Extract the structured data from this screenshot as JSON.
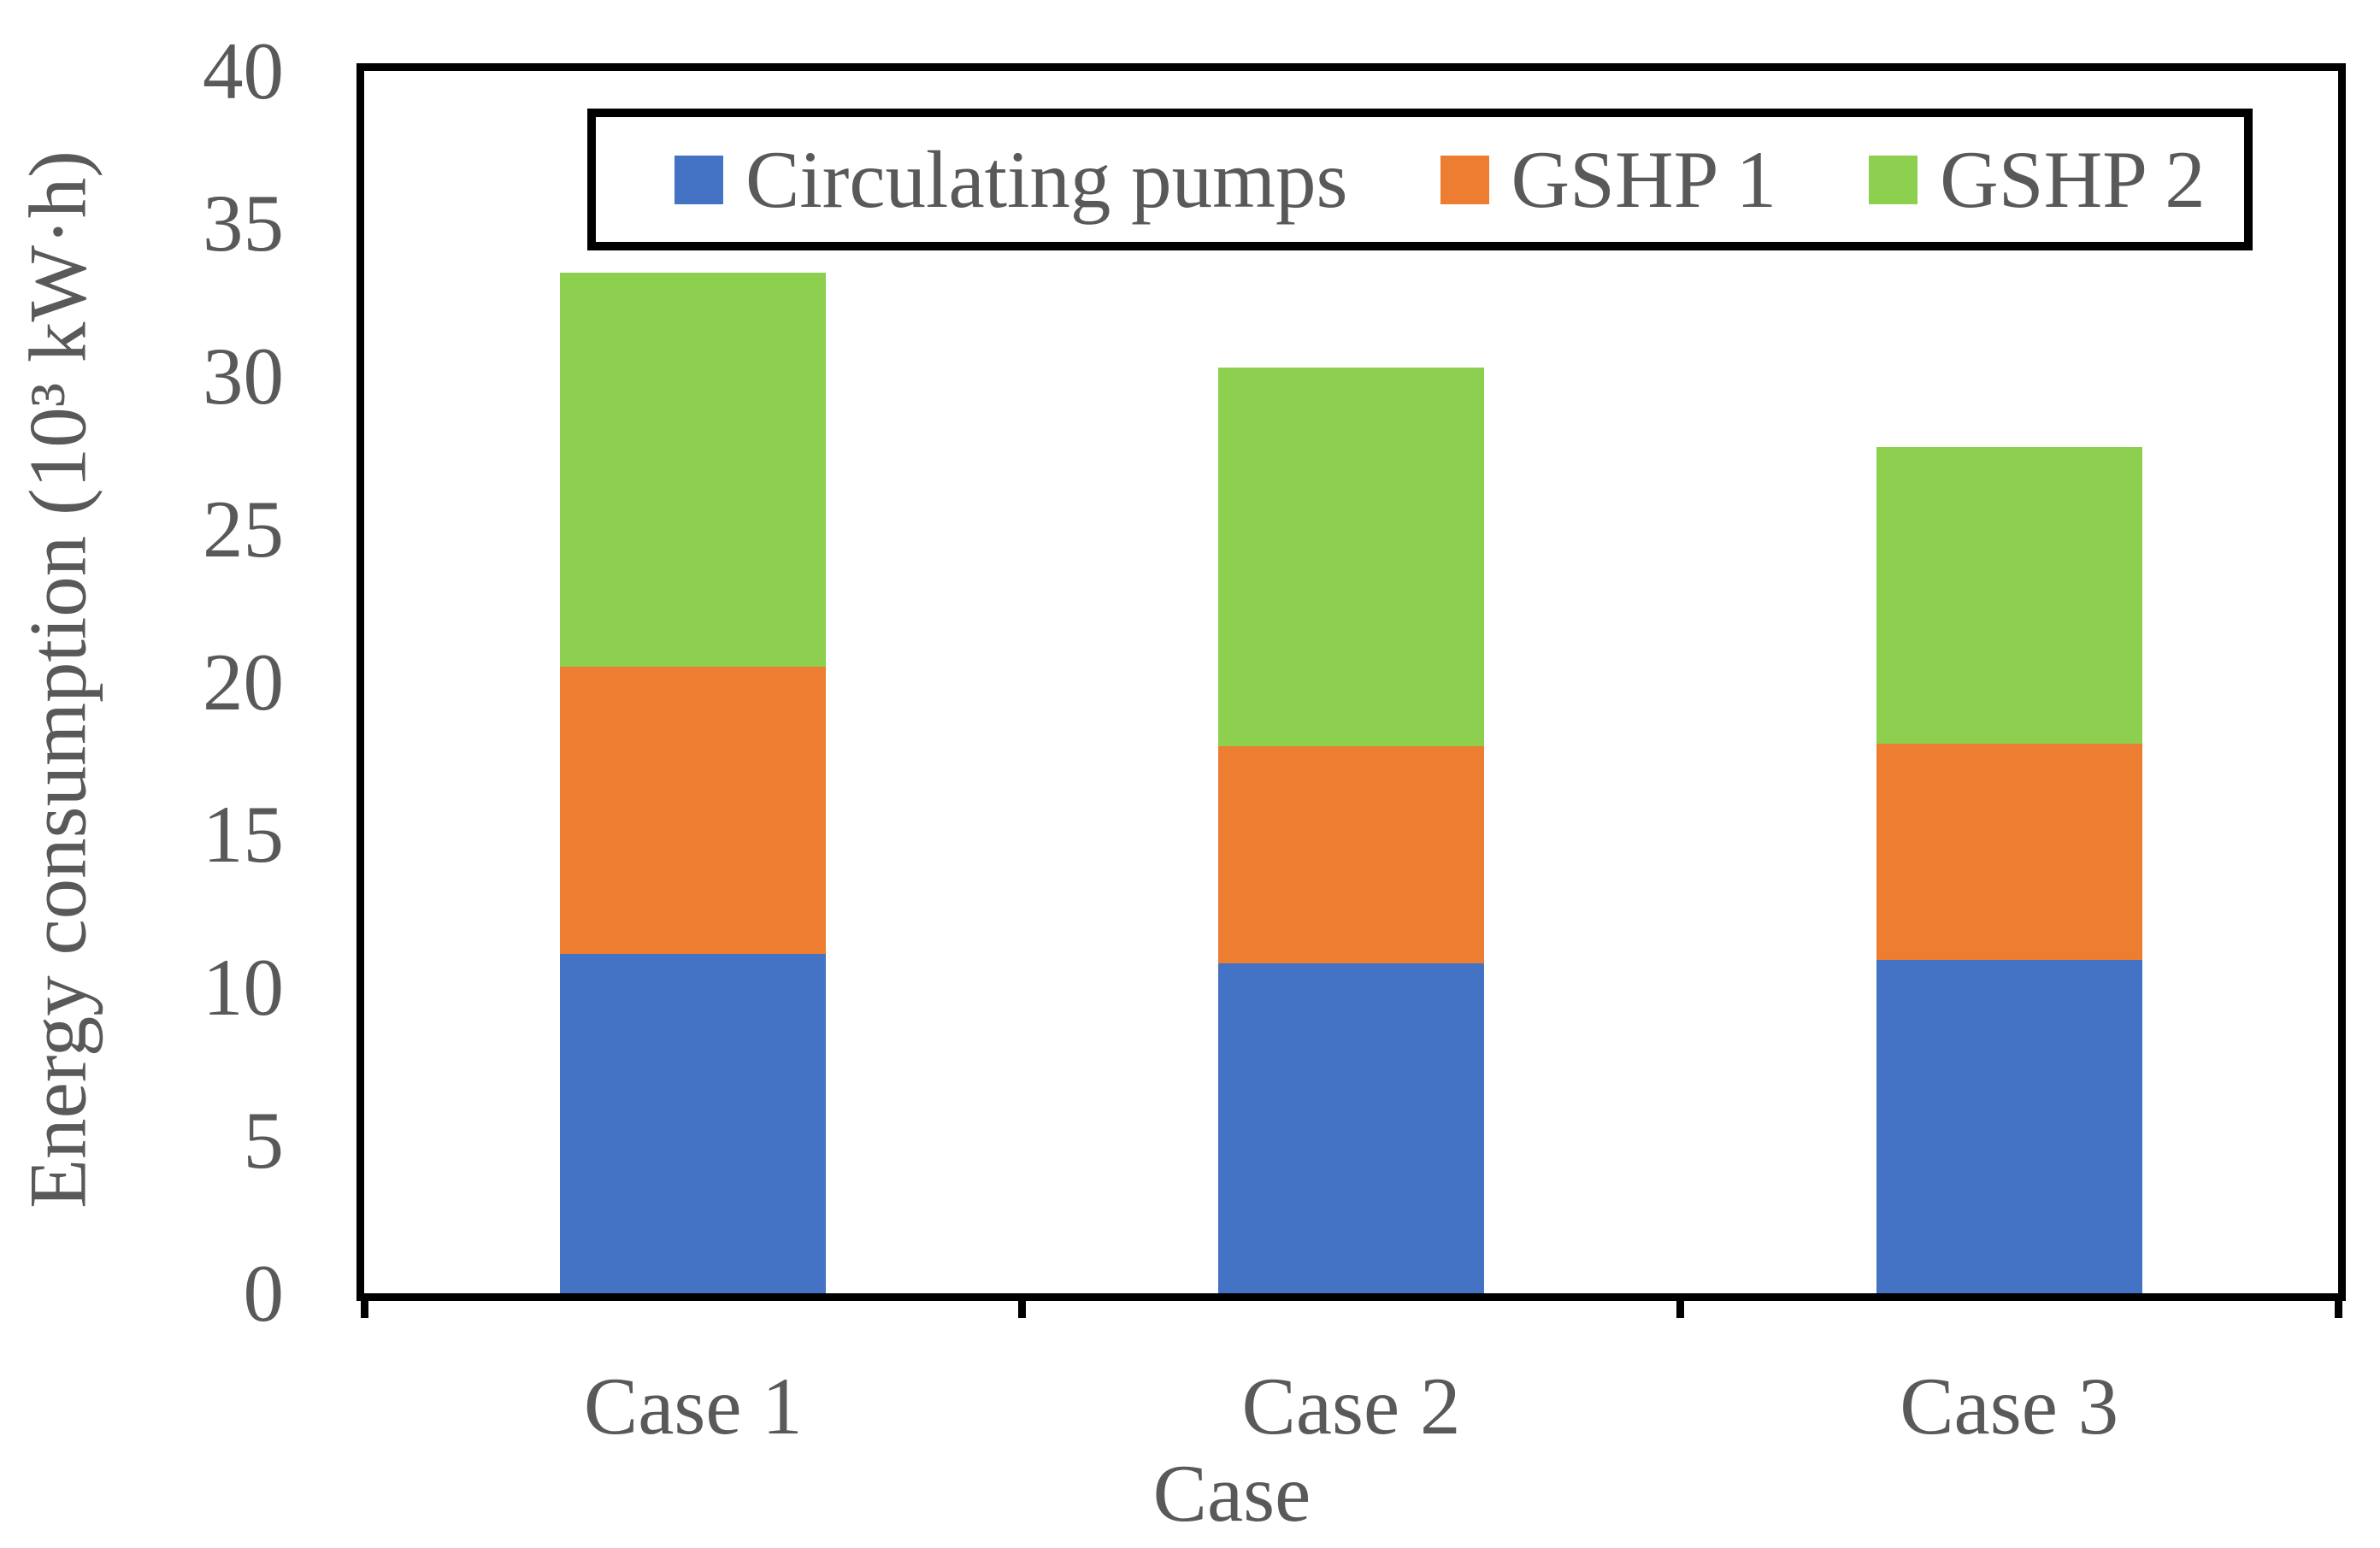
{
  "chart_data": {
    "type": "bar",
    "stacked": true,
    "title": "",
    "xlabel": "Case",
    "ylabel": "Energy consumption (10³ kW·h)",
    "categories": [
      "Case 1",
      "Case 2",
      "Case 3"
    ],
    "series": [
      {
        "name": "Circulating pumps",
        "color": "#4472C4",
        "values": [
          11.1,
          10.8,
          10.9
        ]
      },
      {
        "name": "GSHP 1",
        "color": "#ED7D31",
        "values": [
          9.4,
          7.1,
          7.1
        ]
      },
      {
        "name": "GSHP 2",
        "color": "#8DCF4E",
        "values": [
          12.9,
          12.4,
          9.7
        ]
      }
    ],
    "stack_totals": [
      33.4,
      30.3,
      27.7
    ],
    "ylim": [
      0,
      40
    ],
    "yticks": [
      0,
      5,
      10,
      15,
      20,
      25,
      30,
      35,
      40
    ],
    "grid": false,
    "legend_position": "top-inside",
    "legend_border": true
  },
  "colors": {
    "axis_text": "#595959",
    "axis_line": "#000000",
    "background": "#FFFFFF"
  }
}
